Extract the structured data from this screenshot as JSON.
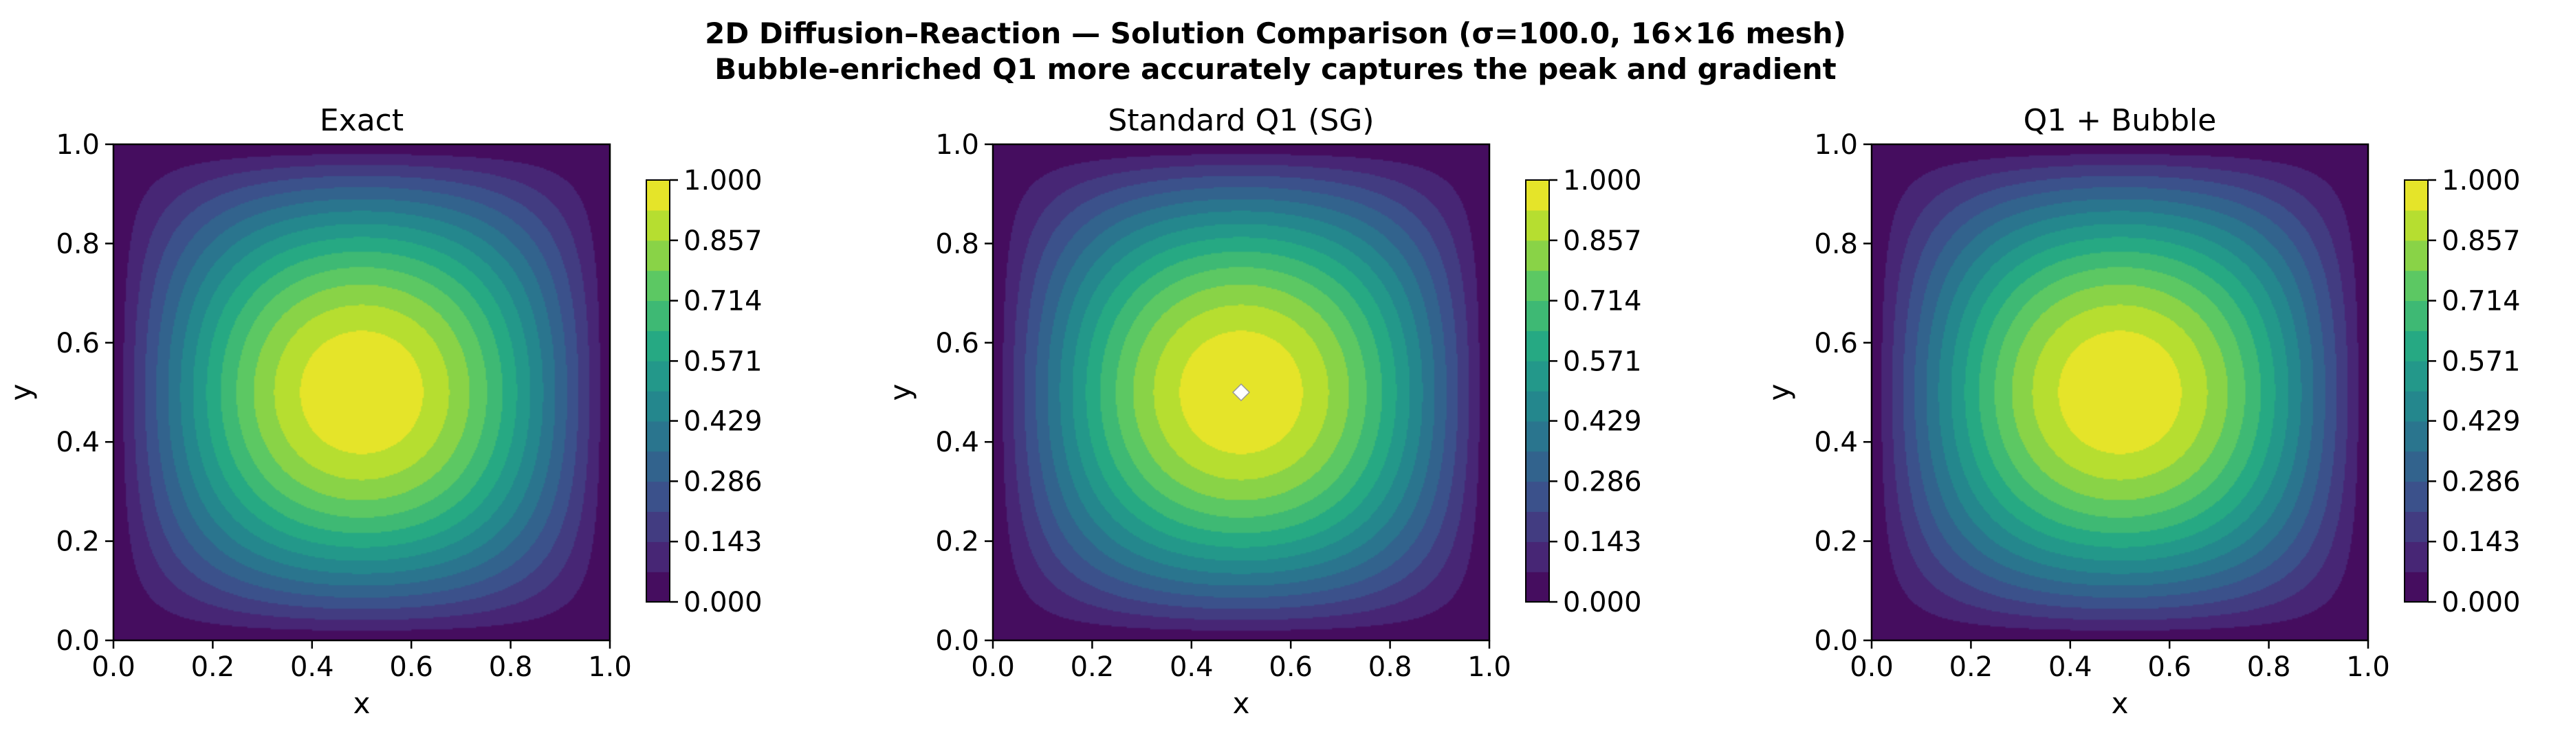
{
  "figure": {
    "title_line1": "2D Diffusion–Reaction — Solution Comparison (σ=100.0, 16×16 mesh)",
    "title_line2": "Bubble-enriched Q1 more accurately captures the peak and gradient"
  },
  "chart_data": [
    {
      "type": "heatmap",
      "subtype": "filled-contour",
      "title": "Exact",
      "xlabel": "x",
      "ylabel": "y",
      "xlim": [
        0.0,
        1.0
      ],
      "ylim": [
        0.0,
        1.0
      ],
      "xticks": [
        "0.0",
        "0.2",
        "0.4",
        "0.6",
        "0.8",
        "1.0"
      ],
      "yticks": [
        "0.0",
        "0.2",
        "0.4",
        "0.6",
        "0.8",
        "1.0"
      ],
      "field": "separable bump, max 1.0 at (0.5, 0.5), 0 on boundary",
      "peak": {
        "x": 0.5,
        "y": 0.5,
        "value": 1.0
      },
      "colormap": "viridis",
      "contour_levels": 14,
      "colorbar": {
        "range": [
          0.0,
          1.0
        ],
        "ticks": [
          "0.000",
          "0.143",
          "0.286",
          "0.429",
          "0.571",
          "0.714",
          "0.857",
          "1.000"
        ]
      }
    },
    {
      "type": "heatmap",
      "subtype": "filled-contour",
      "title": "Standard Q1 (SG)",
      "xlabel": "x",
      "ylabel": "y",
      "xlim": [
        0.0,
        1.0
      ],
      "ylim": [
        0.0,
        1.0
      ],
      "xticks": [
        "0.0",
        "0.2",
        "0.4",
        "0.6",
        "0.8",
        "1.0"
      ],
      "yticks": [
        "0.0",
        "0.2",
        "0.4",
        "0.6",
        "0.8",
        "1.0"
      ],
      "field": "separable bump, max slightly above 1.0 at (0.5, 0.5), 0 on boundary",
      "peak": {
        "x": 0.5,
        "y": 0.5,
        "value": 1.0,
        "overshoot_marker": true
      },
      "colormap": "viridis",
      "contour_levels": 14,
      "colorbar": {
        "range": [
          0.0,
          1.0
        ],
        "ticks": [
          "0.000",
          "0.143",
          "0.286",
          "0.429",
          "0.571",
          "0.714",
          "0.857",
          "1.000"
        ]
      }
    },
    {
      "type": "heatmap",
      "subtype": "filled-contour",
      "title": "Q1 + Bubble",
      "xlabel": "x",
      "ylabel": "y",
      "xlim": [
        0.0,
        1.0
      ],
      "ylim": [
        0.0,
        1.0
      ],
      "xticks": [
        "0.0",
        "0.2",
        "0.4",
        "0.6",
        "0.8",
        "1.0"
      ],
      "yticks": [
        "0.0",
        "0.2",
        "0.4",
        "0.6",
        "0.8",
        "1.0"
      ],
      "field": "separable bump, max 1.0 at (0.5, 0.5), 0 on boundary",
      "peak": {
        "x": 0.5,
        "y": 0.5,
        "value": 1.0
      },
      "colormap": "viridis",
      "contour_levels": 14,
      "colorbar": {
        "range": [
          0.0,
          1.0
        ],
        "ticks": [
          "0.000",
          "0.143",
          "0.286",
          "0.429",
          "0.571",
          "0.714",
          "0.857",
          "1.000"
        ]
      }
    }
  ]
}
